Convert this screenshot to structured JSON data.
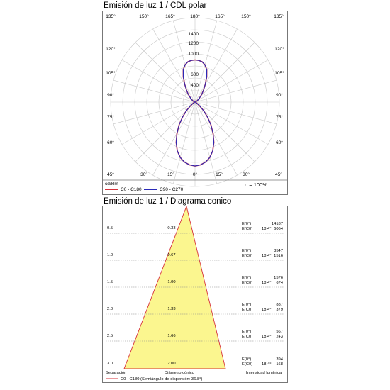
{
  "polar": {
    "title": "Emisión de luz 1 / CDL polar",
    "units": "cd/klm",
    "efficiency": "η = 100%",
    "legend": [
      {
        "label": "C0 - C180",
        "color": "#d6303a"
      },
      {
        "label": "C90 - C270",
        "color": "#2a2ab8"
      }
    ],
    "angle_labels_top": [
      "135°",
      "150°",
      "165°",
      "180°",
      "165°",
      "150°",
      "135°"
    ],
    "angle_labels_side_left": [
      "120°",
      "105°",
      "90°",
      "75°",
      "60°"
    ],
    "angle_labels_side_right": [
      "120°",
      "105°",
      "90°",
      "75°",
      "60°"
    ],
    "angle_labels_bottom": [
      "45°",
      "30°",
      "15°",
      "0°",
      "15°",
      "30°",
      "45°"
    ],
    "radial_labels": [
      "400",
      "600",
      "1000",
      "1200",
      "1400"
    ]
  },
  "cone": {
    "title": "Emisión de luz 1 / Diagrama conico",
    "legend": {
      "label": "C0 - C180 (Semiángulo de dispersión: 36.8°)",
      "color": "#d6303a"
    },
    "footer": {
      "separation": "Separación",
      "diameter": "Diámetro cónico",
      "intensity": "Intensidad lumínica"
    },
    "rows": [
      {
        "distance": "0.5",
        "diameter": "0.33",
        "e0_label": "E(0°)",
        "ec0_label": "E(C0)",
        "angle": "18.4°",
        "e0": "14187",
        "ec0": "6064"
      },
      {
        "distance": "1.0",
        "diameter": "0.67",
        "e0_label": "E(0°)",
        "ec0_label": "E(C0)",
        "angle": "18.4°",
        "e0": "3547",
        "ec0": "1516"
      },
      {
        "distance": "1.5",
        "diameter": "1.00",
        "e0_label": "E(0°)",
        "ec0_label": "E(C0)",
        "angle": "18.4°",
        "e0": "1576",
        "ec0": "674"
      },
      {
        "distance": "2.0",
        "diameter": "1.33",
        "e0_label": "E(0°)",
        "ec0_label": "E(C0)",
        "angle": "18.4°",
        "e0": "887",
        "ec0": "379"
      },
      {
        "distance": "2.5",
        "diameter": "1.66",
        "e0_label": "E(0°)",
        "ec0_label": "E(C0)",
        "angle": "18.4°",
        "e0": "567",
        "ec0": "243"
      },
      {
        "distance": "3.0",
        "diameter": "2.00",
        "e0_label": "E(0°)",
        "ec0_label": "E(C0)",
        "angle": "18.4°",
        "e0": "394",
        "ec0": "168"
      }
    ]
  },
  "chart_data": [
    {
      "type": "line",
      "subtype": "polar",
      "title": "Emisión de luz 1 / CDL polar",
      "ylabel": "cd/klm",
      "radial_ticks": [
        400,
        600,
        1000,
        1200,
        1400
      ],
      "rlim": [
        0,
        1500
      ],
      "grid": true,
      "angle_unit": "deg from nadir",
      "series": [
        {
          "name": "C0 - C180",
          "color": "#d6303a",
          "angles": [
            0,
            5,
            10,
            15,
            20,
            25,
            30,
            35,
            40,
            45,
            50,
            60,
            70,
            80,
            90,
            100,
            110,
            120,
            130,
            140,
            145,
            150,
            155,
            160,
            165,
            170,
            175,
            180
          ],
          "values": [
            1060,
            1045,
            1010,
            950,
            860,
            740,
            600,
            460,
            320,
            200,
            110,
            35,
            10,
            2,
            0,
            3,
            15,
            40,
            90,
            180,
            250,
            340,
            460,
            570,
            640,
            680,
            695,
            700
          ]
        },
        {
          "name": "C90 - C270",
          "color": "#2a2ab8",
          "angles": [
            0,
            5,
            10,
            15,
            20,
            25,
            30,
            35,
            40,
            45,
            50,
            60,
            70,
            80,
            90,
            100,
            110,
            120,
            130,
            140,
            145,
            150,
            155,
            160,
            165,
            170,
            175,
            180
          ],
          "values": [
            1060,
            1045,
            1010,
            950,
            860,
            740,
            600,
            460,
            320,
            200,
            110,
            35,
            10,
            2,
            0,
            3,
            15,
            40,
            90,
            180,
            250,
            340,
            460,
            570,
            640,
            680,
            695,
            700
          ]
        }
      ]
    },
    {
      "type": "table",
      "subtype": "cone diagram",
      "title": "Emisión de luz 1 / Diagrama conico",
      "half_angle_deg": 36.8,
      "columns": [
        "Separación",
        "Diámetro cónico",
        "E(0°)",
        "E(C0)"
      ],
      "rows": [
        [
          0.5,
          0.33,
          14187,
          6064
        ],
        [
          1.0,
          0.67,
          3547,
          1516
        ],
        [
          1.5,
          1.0,
          1576,
          674
        ],
        [
          2.0,
          1.33,
          887,
          379
        ],
        [
          2.5,
          1.66,
          567,
          243
        ],
        [
          3.0,
          2.0,
          394,
          168
        ]
      ]
    }
  ]
}
